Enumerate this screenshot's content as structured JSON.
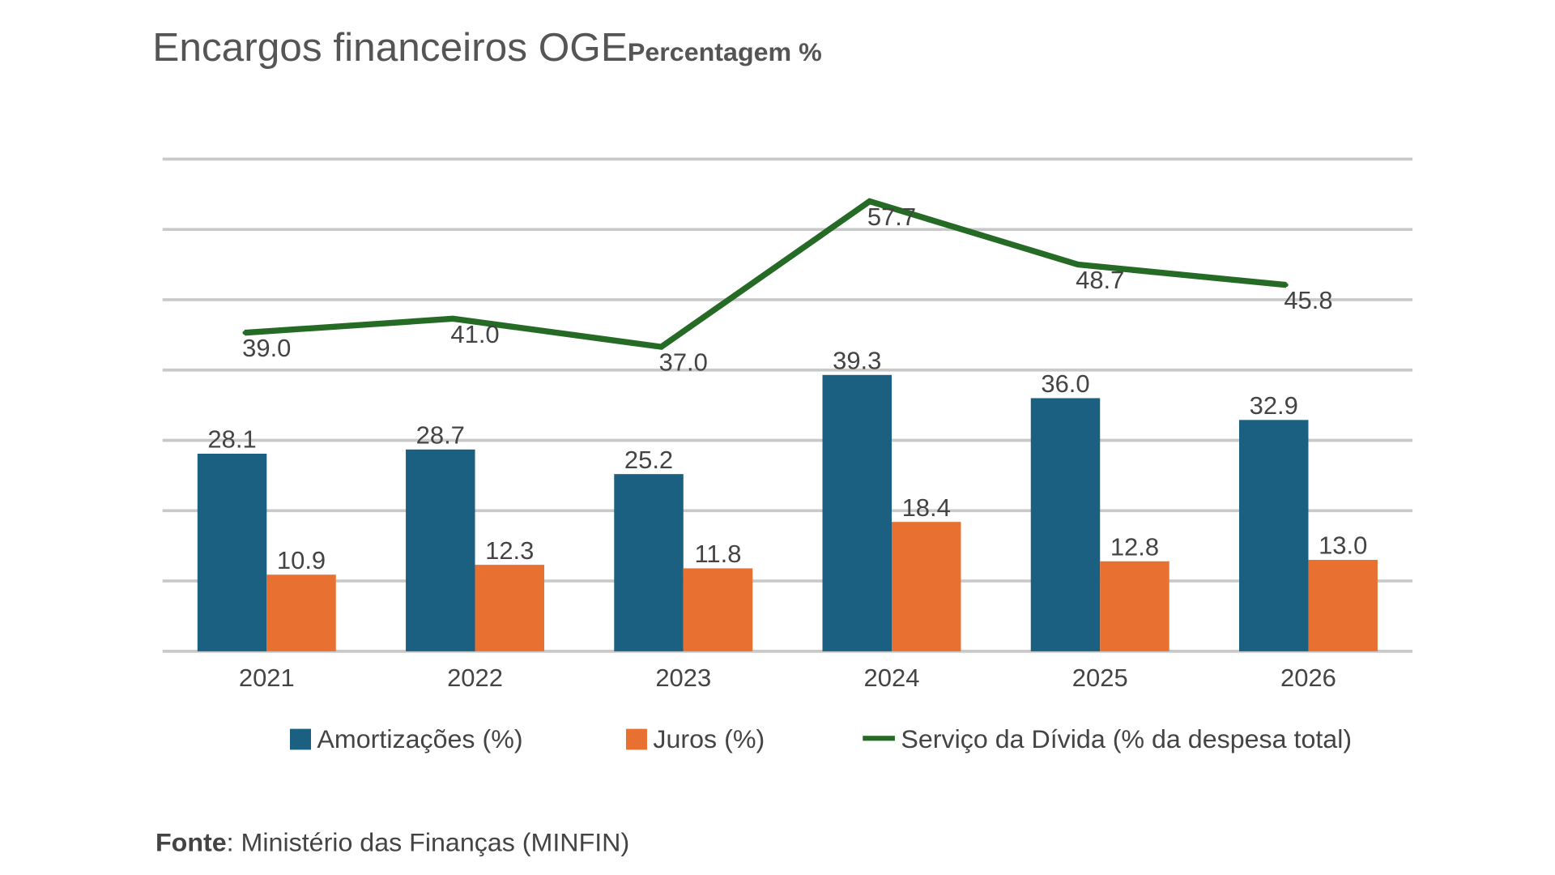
{
  "title": "Encargos financeiros OGE",
  "subtitle": "Percentagem %",
  "source_label": "Fonte",
  "source_text": ": Ministério das Finanças (MINFIN)",
  "colors": {
    "amortizacoes": "#1b5f81",
    "juros": "#e87132",
    "servico": "#256b25",
    "grid": "#c9c9c9"
  },
  "chart_data": {
    "type": "bar",
    "title": "Encargos financeiros OGE",
    "subtitle": "Percentagem %",
    "categories": [
      "2021",
      "2022",
      "2023",
      "2024",
      "2025",
      "2026"
    ],
    "series": [
      {
        "name": "Amortizações (%)",
        "type": "bar",
        "axis": "primary",
        "values": [
          28.1,
          28.7,
          25.2,
          39.3,
          36.0,
          32.9
        ]
      },
      {
        "name": "Juros (%)",
        "type": "bar",
        "axis": "primary",
        "values": [
          10.9,
          12.3,
          11.8,
          18.4,
          12.8,
          13.0
        ]
      },
      {
        "name": "Serviço da Dívida (% da despesa total)",
        "type": "line",
        "axis": "secondary",
        "values": [
          39.0,
          41.0,
          37.0,
          57.7,
          48.7,
          45.8
        ]
      }
    ],
    "ylim": [
      0,
      70
    ],
    "y2lim": [
      -6.3,
      63.7
    ],
    "y_axis_labels_shown": false,
    "grid": true,
    "legend": "bottom",
    "xlabel": "",
    "ylabel": ""
  }
}
